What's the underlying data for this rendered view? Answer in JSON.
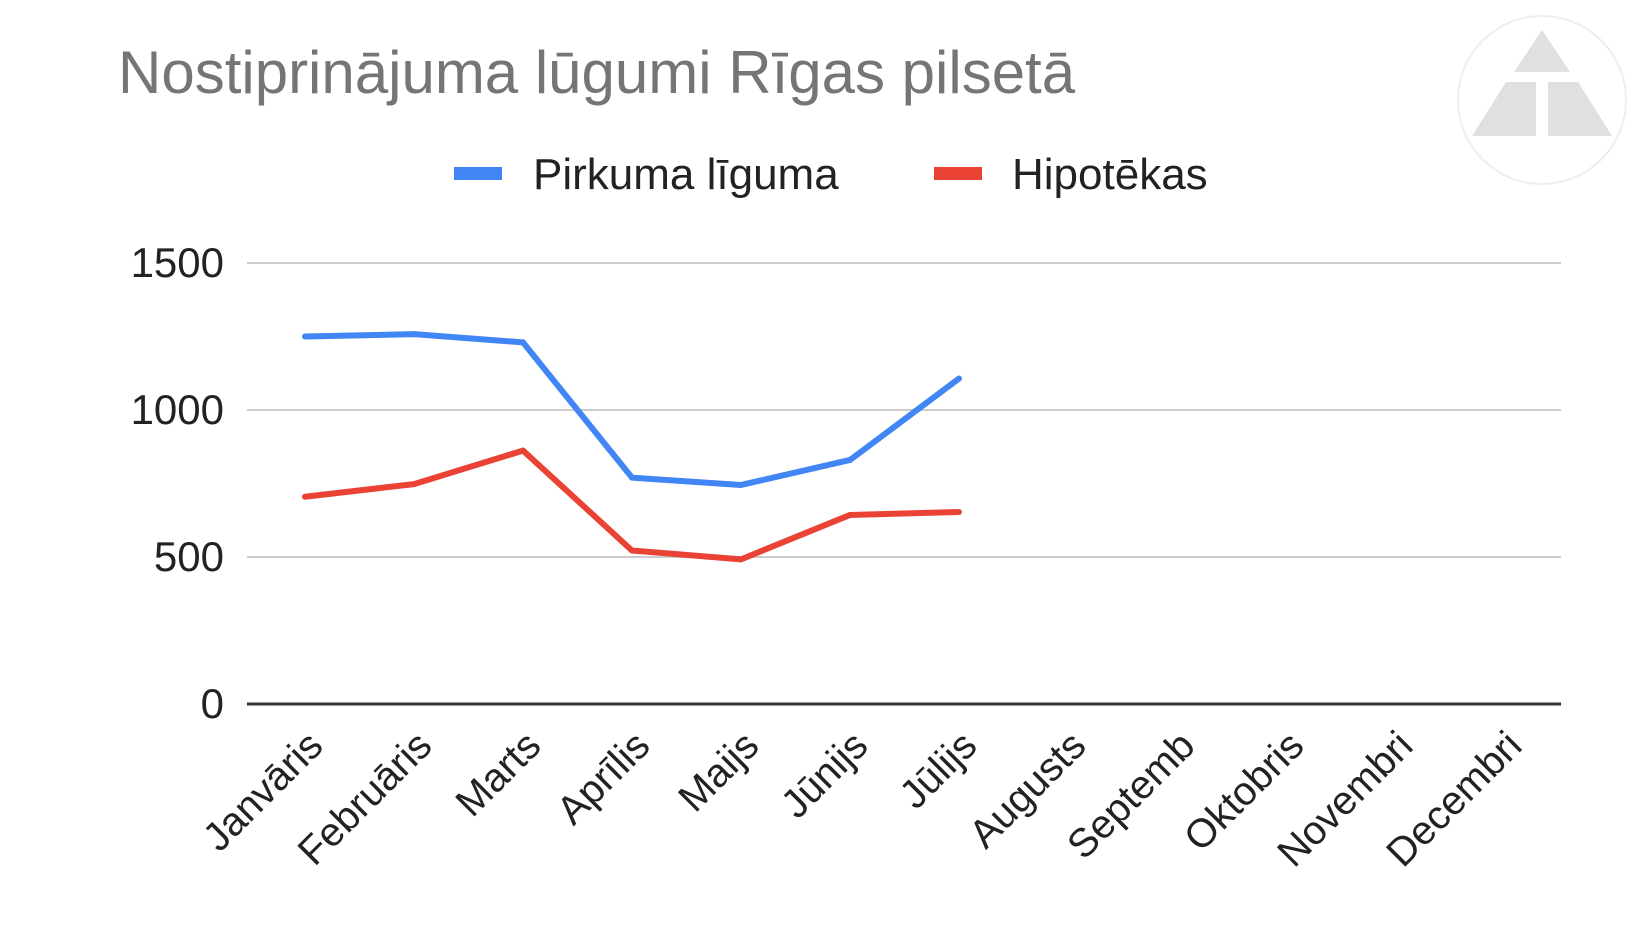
{
  "chart_data": {
    "type": "line",
    "title": "Nostiprinājuma lūgumi Rīgas pilsetā",
    "xlabel": "",
    "ylabel": "",
    "categories": [
      "Janvāris",
      "Februāris",
      "Marts",
      "Aprīlis",
      "Maijs",
      "Jūnijs",
      "Jūlijs",
      "Augusts",
      "Septemb",
      "Oktobris",
      "Novembri",
      "Decembri"
    ],
    "series": [
      {
        "name": "Pirkuma līguma",
        "color": "#4285f4",
        "values": [
          1250,
          1258,
          1230,
          770,
          745,
          830,
          1107,
          null,
          null,
          null,
          null,
          null
        ]
      },
      {
        "name": "Hipotēkas",
        "color": "#ea4335",
        "values": [
          705,
          748,
          862,
          522,
          492,
          643,
          653,
          null,
          null,
          null,
          null,
          null
        ]
      }
    ],
    "ylim": [
      0,
      1500
    ],
    "yticks": [
      "0",
      "500",
      "1000",
      "1500"
    ],
    "grid": true,
    "legend_position": "top"
  },
  "logo": {
    "icon": "triangle-logo-icon",
    "color": "#e0e0e0"
  }
}
